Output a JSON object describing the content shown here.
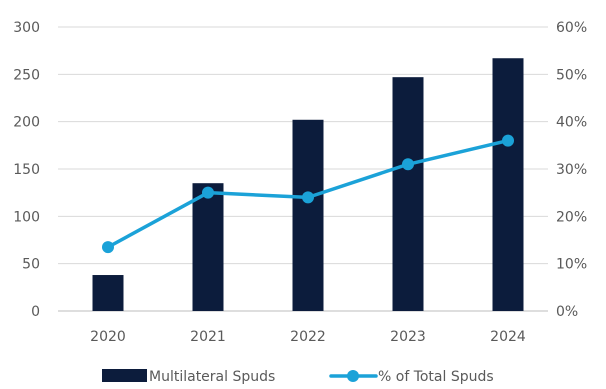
{
  "chart_data": {
    "type": "bar",
    "categories": [
      "2020",
      "2021",
      "2022",
      "2023",
      "2024"
    ],
    "series": [
      {
        "name": "Multilateral Spuds",
        "type": "bar",
        "axis": "left",
        "values": [
          38,
          135,
          202,
          247,
          267
        ],
        "color": "#0c1c3c"
      },
      {
        "name": "% of Total Spuds",
        "type": "line",
        "axis": "right",
        "values": [
          13.5,
          25,
          24,
          31,
          36
        ],
        "color": "#1ba2d8"
      }
    ],
    "y_left": {
      "min": 0,
      "max": 300,
      "ticks": [
        "0",
        "50",
        "100",
        "150",
        "200",
        "250",
        "300"
      ]
    },
    "y_right": {
      "min": 0,
      "max": 60,
      "ticks": [
        "0%",
        "10%",
        "20%",
        "30%",
        "40%",
        "50%",
        "60%"
      ]
    },
    "grid": true,
    "legend_position": "bottom"
  }
}
